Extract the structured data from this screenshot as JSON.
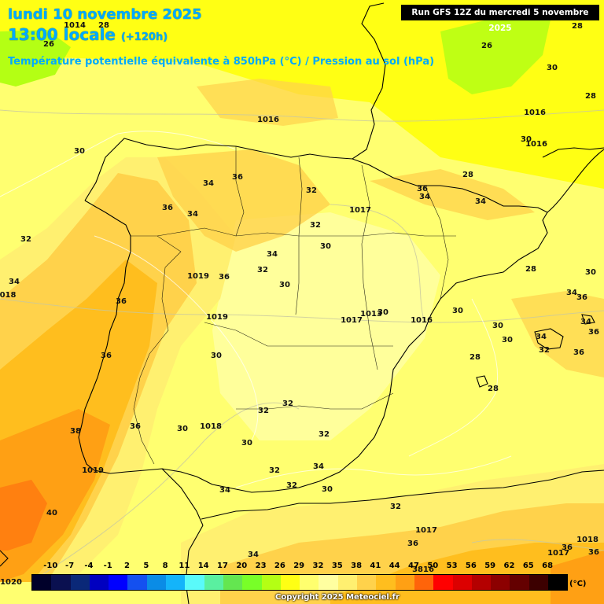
{
  "header": {
    "date": "lundi 10 novembre 2025",
    "time": "13:00 locale",
    "offset": "(+120h)",
    "subtitle": "Température potentielle équivalente à 850hPa (°C) / Pression au sol (hPa)",
    "run": "Run GFS 12Z du mercredi 5 novembre 2025"
  },
  "labels": [
    {
      "t": "1014",
      "p": [
        95,
        33
      ]
    },
    {
      "t": "28",
      "p": [
        132,
        33
      ]
    },
    {
      "t": "26",
      "p": [
        62,
        57
      ]
    },
    {
      "t": "26",
      "p": [
        619,
        59
      ]
    },
    {
      "t": "28",
      "p": [
        734,
        34
      ]
    },
    {
      "t": "30",
      "p": [
        702,
        87
      ]
    },
    {
      "t": "28",
      "p": [
        751,
        123
      ]
    },
    {
      "t": "1016",
      "p": [
        341,
        153
      ]
    },
    {
      "t": "1016",
      "p": [
        680,
        144
      ]
    },
    {
      "t": "30",
      "p": [
        669,
        178
      ]
    },
    {
      "t": "1016",
      "p": [
        682,
        184
      ]
    },
    {
      "t": "30",
      "p": [
        101,
        193
      ]
    },
    {
      "t": "28",
      "p": [
        595,
        223
      ]
    },
    {
      "t": "36",
      "p": [
        302,
        226
      ]
    },
    {
      "t": "34",
      "p": [
        265,
        234
      ]
    },
    {
      "t": "32",
      "p": [
        396,
        243
      ]
    },
    {
      "t": "36",
      "p": [
        537,
        241
      ]
    },
    {
      "t": "34",
      "p": [
        540,
        251
      ]
    },
    {
      "t": "34",
      "p": [
        611,
        257
      ]
    },
    {
      "t": "1017",
      "p": [
        458,
        268
      ]
    },
    {
      "t": "36",
      "p": [
        213,
        265
      ]
    },
    {
      "t": "34",
      "p": [
        245,
        273
      ]
    },
    {
      "t": "32",
      "p": [
        401,
        287
      ]
    },
    {
      "t": "32",
      "p": [
        33,
        305
      ]
    },
    {
      "t": "30",
      "p": [
        414,
        314
      ]
    },
    {
      "t": "34",
      "p": [
        346,
        324
      ]
    },
    {
      "t": "32",
      "p": [
        334,
        344
      ]
    },
    {
      "t": "28",
      "p": [
        675,
        343
      ]
    },
    {
      "t": "30",
      "p": [
        751,
        347
      ]
    },
    {
      "t": "1019",
      "p": [
        252,
        352
      ]
    },
    {
      "t": "36",
      "p": [
        285,
        353
      ]
    },
    {
      "t": "34",
      "p": [
        18,
        359
      ]
    },
    {
      "t": "30",
      "p": [
        362,
        363
      ]
    },
    {
      "t": "018",
      "p": [
        10,
        376
      ]
    },
    {
      "t": "34",
      "p": [
        727,
        373
      ]
    },
    {
      "t": "36",
      "p": [
        740,
        379
      ]
    },
    {
      "t": "36",
      "p": [
        154,
        384
      ]
    },
    {
      "t": "30",
      "p": [
        582,
        396
      ]
    },
    {
      "t": "1019",
      "p": [
        276,
        404
      ]
    },
    {
      "t": "1013",
      "p": [
        472,
        400
      ]
    },
    {
      "t": "30",
      "p": [
        487,
        398
      ]
    },
    {
      "t": "1017",
      "p": [
        447,
        408
      ]
    },
    {
      "t": "1016",
      "p": [
        536,
        408
      ]
    },
    {
      "t": "30",
      "p": [
        633,
        415
      ]
    },
    {
      "t": "34",
      "p": [
        745,
        410
      ]
    },
    {
      "t": "34",
      "p": [
        688,
        429
      ]
    },
    {
      "t": "30",
      "p": [
        645,
        433
      ]
    },
    {
      "t": "32",
      "p": [
        692,
        446
      ]
    },
    {
      "t": "36",
      "p": [
        755,
        423
      ]
    },
    {
      "t": "36",
      "p": [
        135,
        453
      ]
    },
    {
      "t": "30",
      "p": [
        275,
        453
      ]
    },
    {
      "t": "28",
      "p": [
        604,
        455
      ]
    },
    {
      "t": "36",
      "p": [
        736,
        449
      ]
    },
    {
      "t": "28",
      "p": [
        627,
        495
      ]
    },
    {
      "t": "32",
      "p": [
        366,
        514
      ]
    },
    {
      "t": "32",
      "p": [
        335,
        523
      ]
    },
    {
      "t": "36",
      "p": [
        172,
        543
      ]
    },
    {
      "t": "30",
      "p": [
        232,
        546
      ]
    },
    {
      "t": "1018",
      "p": [
        268,
        543
      ]
    },
    {
      "t": "38",
      "p": [
        96,
        549
      ]
    },
    {
      "t": "32",
      "p": [
        412,
        553
      ]
    },
    {
      "t": "30",
      "p": [
        314,
        564
      ]
    },
    {
      "t": "34",
      "p": [
        405,
        594
      ]
    },
    {
      "t": "1019",
      "p": [
        118,
        599
      ]
    },
    {
      "t": "32",
      "p": [
        349,
        599
      ]
    },
    {
      "t": "32",
      "p": [
        371,
        618
      ]
    },
    {
      "t": "30",
      "p": [
        416,
        623
      ]
    },
    {
      "t": "34",
      "p": [
        286,
        624
      ]
    },
    {
      "t": "32",
      "p": [
        503,
        645
      ]
    },
    {
      "t": "40",
      "p": [
        66,
        653
      ]
    },
    {
      "t": "1017",
      "p": [
        542,
        675
      ]
    },
    {
      "t": "1018",
      "p": [
        747,
        687
      ]
    },
    {
      "t": "36",
      "p": [
        525,
        692
      ]
    },
    {
      "t": "36",
      "p": [
        721,
        697
      ]
    },
    {
      "t": "1017",
      "p": [
        710,
        704
      ]
    },
    {
      "t": "36",
      "p": [
        755,
        703
      ]
    },
    {
      "t": "34",
      "p": [
        322,
        706
      ]
    },
    {
      "t": "1020",
      "p": [
        14,
        741
      ]
    },
    {
      "t": "3816",
      "p": [
        538,
        725
      ]
    }
  ],
  "legend": {
    "ticks": [
      "-10",
      "-7",
      "-4",
      "-1",
      "2",
      "5",
      "8",
      "11",
      "14",
      "17",
      "20",
      "23",
      "26",
      "29",
      "32",
      "35",
      "38",
      "41",
      "44",
      "47",
      "50",
      "53",
      "56",
      "59",
      "62",
      "65",
      "68"
    ],
    "colors": [
      "#00002a",
      "#0a1050",
      "#0a2878",
      "#0000c0",
      "#0000ff",
      "#1450f0",
      "#0a8ce6",
      "#14b4fa",
      "#5afafa",
      "#5af0a0",
      "#64e650",
      "#78ff28",
      "#b4ff14",
      "#ffff14",
      "#ffff6e",
      "#ffffa0",
      "#fff070",
      "#ffd24b",
      "#ffbe1e",
      "#ffa014",
      "#ff640a",
      "#ff0000",
      "#dc0000",
      "#b40000",
      "#8c0000",
      "#640000",
      "#3c0000",
      "#000000"
    ],
    "unit": "(°C)"
  },
  "copyright": "Copyright 2025 Meteociel.fr"
}
